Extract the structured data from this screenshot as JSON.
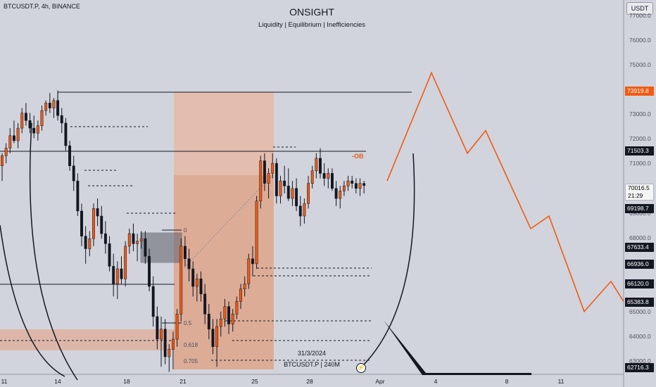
{
  "header": {
    "symbol_line": "BTCUSDT.P, 4h, BINANCE",
    "title": "ONSIGHT",
    "subtitle": "Liquidity | Equilibrium | Inefficiencies",
    "currency": "USDT"
  },
  "annotations": {
    "ob_label": "-OB",
    "fib_0": "0",
    "fib_05": "0.5",
    "fib_0618": "0.618",
    "fib_0705": "0.705",
    "date_label": "31/3/2024",
    "symbol_label": "BTCUSDT.P | 240M",
    "flash_icon": "⚡"
  },
  "price_axis": {
    "ticks": [
      "77000.0",
      "76000.0",
      "75000.0",
      "73000.0",
      "72000.0",
      "71000.0",
      "69000.0",
      "68000.0",
      "65000.0",
      "64000.0",
      "63000.0"
    ],
    "labels": {
      "projection_high": "73919.8",
      "ob_level": "71503.3",
      "current_price": "70016.5",
      "countdown": "21:29",
      "level_a": "69198.7",
      "level_b": "67633.4",
      "level_c": "66936.0",
      "level_d": "66120.0",
      "level_e": "65383.8",
      "level_f": "62716.3"
    }
  },
  "time_axis": {
    "ticks": [
      "11",
      "14",
      "18",
      "21",
      "25",
      "28",
      "Apr",
      "4",
      "8",
      "11"
    ]
  },
  "colors": {
    "background": "#d1d4dc",
    "bull_candle": "#f05a13",
    "bear_candle": "#131722",
    "projection_line": "#f05a13",
    "zone_fill": "#e8946a"
  },
  "chart_data": {
    "type": "candlestick",
    "timeframe": "4h",
    "ylim": [
      62500,
      77400
    ],
    "candles": [
      {
        "o": 70800,
        "h": 71300,
        "l": 70200,
        "c": 71200
      },
      {
        "o": 71200,
        "h": 71700,
        "l": 70900,
        "c": 71500
      },
      {
        "o": 71500,
        "h": 72300,
        "l": 71300,
        "c": 72000
      },
      {
        "o": 72000,
        "h": 72600,
        "l": 71700,
        "c": 71800
      },
      {
        "o": 71800,
        "h": 72500,
        "l": 71500,
        "c": 72300
      },
      {
        "o": 72300,
        "h": 73100,
        "l": 72100,
        "c": 72900
      },
      {
        "o": 72900,
        "h": 73300,
        "l": 72400,
        "c": 72600
      },
      {
        "o": 72600,
        "h": 72900,
        "l": 72100,
        "c": 72300
      },
      {
        "o": 72300,
        "h": 72800,
        "l": 71900,
        "c": 72100
      },
      {
        "o": 72100,
        "h": 72600,
        "l": 71800,
        "c": 72400
      },
      {
        "o": 72400,
        "h": 73200,
        "l": 72200,
        "c": 73000
      },
      {
        "o": 73000,
        "h": 73400,
        "l": 72800,
        "c": 73300
      },
      {
        "o": 73300,
        "h": 73700,
        "l": 72900,
        "c": 73100
      },
      {
        "o": 73100,
        "h": 73500,
        "l": 72700,
        "c": 73400
      },
      {
        "o": 73400,
        "h": 73800,
        "l": 72600,
        "c": 72800
      },
      {
        "o": 72800,
        "h": 73100,
        "l": 72100,
        "c": 72500
      },
      {
        "o": 72500,
        "h": 72700,
        "l": 71400,
        "c": 71600
      },
      {
        "o": 71600,
        "h": 71800,
        "l": 70600,
        "c": 70800
      },
      {
        "o": 70800,
        "h": 71200,
        "l": 69800,
        "c": 70200
      },
      {
        "o": 70200,
        "h": 70500,
        "l": 68800,
        "c": 69000
      },
      {
        "o": 69000,
        "h": 69300,
        "l": 67600,
        "c": 68000
      },
      {
        "o": 68000,
        "h": 68400,
        "l": 66900,
        "c": 67500
      },
      {
        "o": 67500,
        "h": 68200,
        "l": 67200,
        "c": 67900
      },
      {
        "o": 67900,
        "h": 69300,
        "l": 67600,
        "c": 69100
      },
      {
        "o": 69100,
        "h": 69500,
        "l": 68400,
        "c": 68800
      },
      {
        "o": 68800,
        "h": 69200,
        "l": 67900,
        "c": 68100
      },
      {
        "o": 68100,
        "h": 68600,
        "l": 67300,
        "c": 67700
      },
      {
        "o": 67700,
        "h": 68000,
        "l": 66600,
        "c": 66800
      },
      {
        "o": 66800,
        "h": 67300,
        "l": 65600,
        "c": 66100
      },
      {
        "o": 66100,
        "h": 67000,
        "l": 65500,
        "c": 66700
      },
      {
        "o": 66700,
        "h": 67200,
        "l": 66100,
        "c": 66300
      },
      {
        "o": 66300,
        "h": 67800,
        "l": 66000,
        "c": 67600
      },
      {
        "o": 67600,
        "h": 68300,
        "l": 67300,
        "c": 68100
      },
      {
        "o": 68100,
        "h": 68500,
        "l": 67400,
        "c": 67700
      },
      {
        "o": 67700,
        "h": 68100,
        "l": 67000,
        "c": 67800
      },
      {
        "o": 67800,
        "h": 68200,
        "l": 67500,
        "c": 67900
      },
      {
        "o": 67900,
        "h": 68200,
        "l": 66900,
        "c": 67200
      },
      {
        "o": 67200,
        "h": 67500,
        "l": 65800,
        "c": 66000
      },
      {
        "o": 66000,
        "h": 66400,
        "l": 64400,
        "c": 64800
      },
      {
        "o": 64800,
        "h": 65200,
        "l": 63500,
        "c": 63900
      },
      {
        "o": 63900,
        "h": 64800,
        "l": 62800,
        "c": 64300
      },
      {
        "o": 64300,
        "h": 64700,
        "l": 62900,
        "c": 63200
      },
      {
        "o": 63200,
        "h": 63700,
        "l": 62600,
        "c": 63500
      },
      {
        "o": 63500,
        "h": 64200,
        "l": 62700,
        "c": 63900
      },
      {
        "o": 63900,
        "h": 65100,
        "l": 63600,
        "c": 64900
      },
      {
        "o": 64900,
        "h": 67900,
        "l": 64600,
        "c": 67600
      },
      {
        "o": 67600,
        "h": 68000,
        "l": 66800,
        "c": 67100
      },
      {
        "o": 67100,
        "h": 67500,
        "l": 66200,
        "c": 66700
      },
      {
        "o": 66700,
        "h": 67000,
        "l": 65600,
        "c": 66000
      },
      {
        "o": 66000,
        "h": 66500,
        "l": 65400,
        "c": 66300
      },
      {
        "o": 66300,
        "h": 66600,
        "l": 65400,
        "c": 65700
      },
      {
        "o": 65700,
        "h": 66100,
        "l": 64500,
        "c": 64900
      },
      {
        "o": 64900,
        "h": 65300,
        "l": 63900,
        "c": 64300
      },
      {
        "o": 64300,
        "h": 64700,
        "l": 63300,
        "c": 63600
      },
      {
        "o": 63600,
        "h": 64700,
        "l": 62800,
        "c": 64400
      },
      {
        "o": 64400,
        "h": 65000,
        "l": 64000,
        "c": 64700
      },
      {
        "o": 64700,
        "h": 65500,
        "l": 64400,
        "c": 65200
      },
      {
        "o": 65200,
        "h": 65400,
        "l": 64100,
        "c": 64500
      },
      {
        "o": 64500,
        "h": 65100,
        "l": 64200,
        "c": 64900
      },
      {
        "o": 64900,
        "h": 65600,
        "l": 64700,
        "c": 65400
      },
      {
        "o": 65400,
        "h": 66100,
        "l": 65100,
        "c": 65900
      },
      {
        "o": 65900,
        "h": 66400,
        "l": 65600,
        "c": 66100
      },
      {
        "o": 66100,
        "h": 67300,
        "l": 65900,
        "c": 67100
      },
      {
        "o": 67100,
        "h": 67600,
        "l": 66400,
        "c": 66900
      },
      {
        "o": 66900,
        "h": 69600,
        "l": 66700,
        "c": 69400
      },
      {
        "o": 69400,
        "h": 71200,
        "l": 69100,
        "c": 71000
      },
      {
        "o": 71000,
        "h": 71300,
        "l": 69800,
        "c": 70100
      },
      {
        "o": 70100,
        "h": 70700,
        "l": 69500,
        "c": 70500
      },
      {
        "o": 70500,
        "h": 71300,
        "l": 70300,
        "c": 70900
      },
      {
        "o": 70900,
        "h": 71100,
        "l": 69300,
        "c": 69600
      },
      {
        "o": 69600,
        "h": 70400,
        "l": 69300,
        "c": 70200
      },
      {
        "o": 70200,
        "h": 70800,
        "l": 69700,
        "c": 70000
      },
      {
        "o": 70000,
        "h": 70700,
        "l": 69400,
        "c": 69500
      },
      {
        "o": 69500,
        "h": 70200,
        "l": 69200,
        "c": 69900
      },
      {
        "o": 69900,
        "h": 70300,
        "l": 69000,
        "c": 69200
      },
      {
        "o": 69200,
        "h": 69600,
        "l": 68400,
        "c": 68800
      },
      {
        "o": 68800,
        "h": 69500,
        "l": 68500,
        "c": 69300
      },
      {
        "o": 69300,
        "h": 70400,
        "l": 69100,
        "c": 70100
      },
      {
        "o": 70100,
        "h": 70800,
        "l": 69900,
        "c": 70600
      },
      {
        "o": 70600,
        "h": 71300,
        "l": 70300,
        "c": 71100
      },
      {
        "o": 71100,
        "h": 71500,
        "l": 70300,
        "c": 70500
      },
      {
        "o": 70500,
        "h": 70900,
        "l": 70000,
        "c": 70300
      },
      {
        "o": 70300,
        "h": 70700,
        "l": 69900,
        "c": 70500
      },
      {
        "o": 70500,
        "h": 70700,
        "l": 69800,
        "c": 69900
      },
      {
        "o": 69900,
        "h": 70200,
        "l": 69200,
        "c": 69500
      },
      {
        "o": 69500,
        "h": 70000,
        "l": 69100,
        "c": 69800
      },
      {
        "o": 69800,
        "h": 70200,
        "l": 69600,
        "c": 70000
      },
      {
        "o": 70000,
        "h": 70400,
        "l": 69800,
        "c": 70200
      },
      {
        "o": 70200,
        "h": 70400,
        "l": 69900,
        "c": 70100
      },
      {
        "o": 70100,
        "h": 70300,
        "l": 69700,
        "c": 69900
      },
      {
        "o": 69900,
        "h": 70300,
        "l": 69600,
        "c": 70100
      },
      {
        "o": 70100,
        "h": 70200,
        "l": 69700,
        "c": 70016.5
      }
    ],
    "projection_path": [
      {
        "t": "27 Mar",
        "price": 70200
      },
      {
        "t": "2 Apr",
        "price": 74500
      },
      {
        "t": "5 Apr",
        "price": 71300
      },
      {
        "t": "6 Apr",
        "price": 72200
      },
      {
        "t": "9 Apr",
        "price": 68300
      },
      {
        "t": "10 Apr",
        "price": 68800
      },
      {
        "t": "13 Apr",
        "price": 65000
      },
      {
        "t": "15 Apr",
        "price": 66200
      },
      {
        "t": "16 Apr",
        "price": 65400
      }
    ],
    "levels": {
      "projection_high": 73919.8,
      "ob": 71503.3,
      "level_a": 69198.7,
      "level_b": 67633.4,
      "level_c": 66936.0,
      "level_d": 66120.0,
      "level_e": 65383.8,
      "level_f": 62716.3
    }
  }
}
